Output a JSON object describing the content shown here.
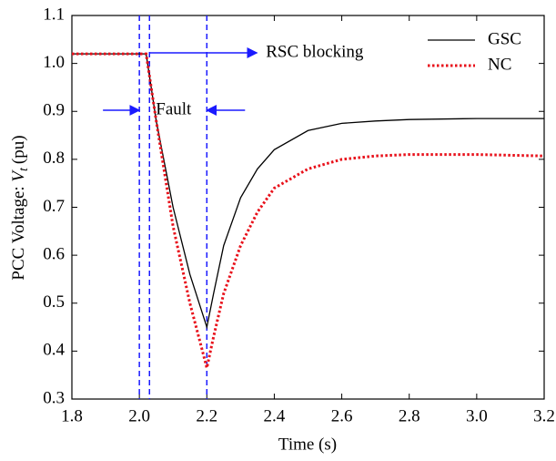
{
  "chart_data": {
    "type": "line",
    "x_label": "Time (s)",
    "y_label": {
      "text": "PCC Voltage: ",
      "var": "V",
      "sub": "t",
      "unit": "(pu)"
    },
    "xlim": [
      1.8,
      3.2
    ],
    "xticks": [
      1.8,
      {
        "value": 2.0,
        "label": "2.0"
      },
      2.2,
      2.4,
      2.6,
      2.8,
      {
        "value": 3.0,
        "label": "3.0"
      },
      3.2
    ],
    "ylim": [
      0.3,
      1.1
    ],
    "yticks": [
      0.3,
      0.4,
      0.5,
      0.6,
      0.7,
      0.8,
      0.9,
      {
        "value": 1.0,
        "label": "1.0"
      },
      1.1
    ],
    "x": [
      1.8,
      2.0,
      2.02,
      2.05,
      2.1,
      2.15,
      2.2,
      2.22,
      2.25,
      2.3,
      2.35,
      2.4,
      2.5,
      2.6,
      2.7,
      2.8,
      3.0,
      3.2
    ],
    "series": [
      {
        "name": "GSC",
        "color": "#000000",
        "style": "solid",
        "values": [
          1.02,
          1.02,
          1.02,
          0.88,
          0.7,
          0.56,
          0.45,
          0.52,
          0.62,
          0.72,
          0.78,
          0.82,
          0.86,
          0.875,
          0.88,
          0.883,
          0.885,
          0.885
        ]
      },
      {
        "name": "NC",
        "color": "#e8101a",
        "style": "dotted",
        "values": [
          1.02,
          1.02,
          1.02,
          0.88,
          0.66,
          0.5,
          0.365,
          0.43,
          0.52,
          0.62,
          0.69,
          0.74,
          0.78,
          0.8,
          0.807,
          0.81,
          0.81,
          0.807
        ]
      }
    ],
    "vlines": [
      2.0,
      2.03,
      2.2
    ],
    "vline_color": "#1a1aff",
    "annotations": [
      "RSC blocking",
      "Fault"
    ],
    "legend": "top-right"
  }
}
